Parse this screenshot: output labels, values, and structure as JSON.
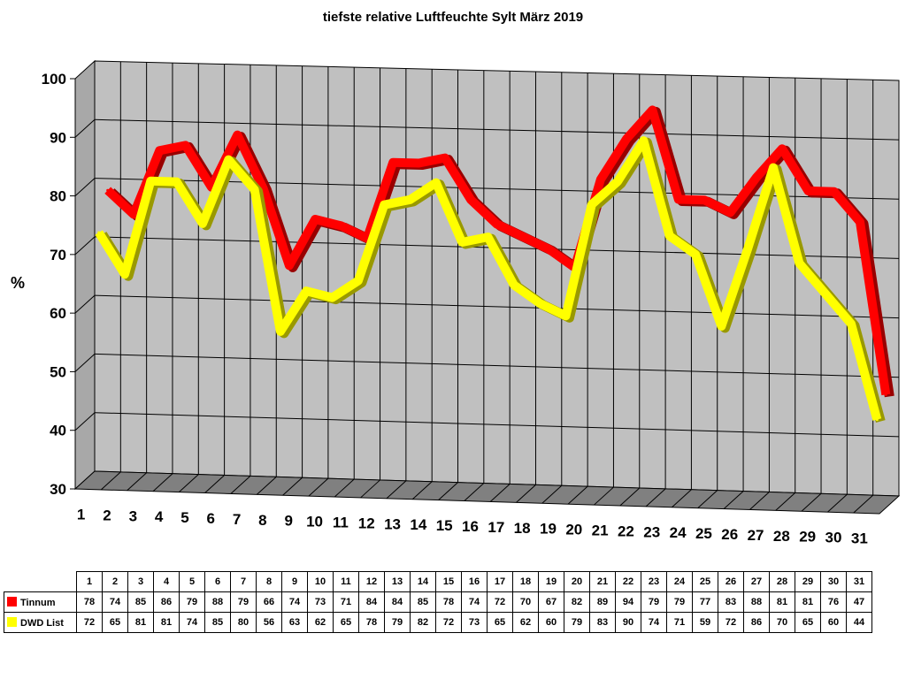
{
  "chart_data": {
    "type": "line",
    "title": "tiefste relative Luftfeuchte Sylt März 2019",
    "ylabel": "%",
    "xlabel": "",
    "ylim": [
      30,
      100
    ],
    "yticks": [
      30,
      40,
      50,
      60,
      70,
      80,
      90,
      100
    ],
    "categories": [
      "1",
      "2",
      "3",
      "4",
      "5",
      "6",
      "7",
      "8",
      "9",
      "10",
      "11",
      "12",
      "13",
      "14",
      "15",
      "16",
      "17",
      "18",
      "19",
      "20",
      "21",
      "22",
      "23",
      "24",
      "25",
      "26",
      "27",
      "28",
      "29",
      "30",
      "31"
    ],
    "grid": true,
    "legend": "data-table",
    "series": [
      {
        "name": "Tinnum",
        "color": "#ff0000",
        "values": [
          78,
          74,
          85,
          86,
          79,
          88,
          79,
          66,
          74,
          73,
          71,
          84,
          84,
          85,
          78,
          74,
          72,
          70,
          67,
          82,
          89,
          94,
          79,
          79,
          77,
          83,
          88,
          81,
          81,
          76,
          47
        ]
      },
      {
        "name": "DWD List",
        "color": "#ffff00",
        "values": [
          72,
          65,
          81,
          81,
          74,
          85,
          80,
          56,
          63,
          62,
          65,
          78,
          79,
          82,
          72,
          73,
          65,
          62,
          60,
          79,
          83,
          90,
          74,
          71,
          59,
          72,
          86,
          70,
          65,
          60,
          44
        ]
      }
    ]
  }
}
